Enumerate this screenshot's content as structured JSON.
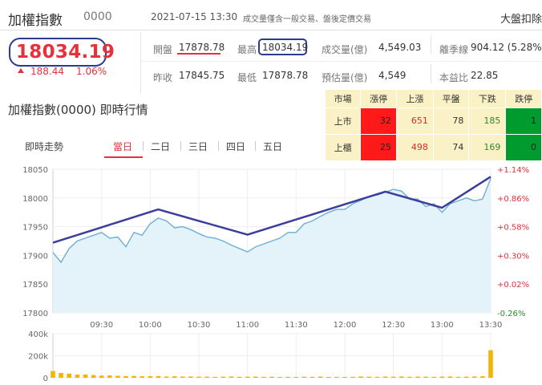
{
  "header": {
    "title": "加權指數",
    "code": "0000",
    "datetime": "2021-07-15 13:30",
    "note": "成交量僅含一般交易、盤後定價交易",
    "nav": "大盤扣除"
  },
  "quote": {
    "price": "18034.19",
    "change": "188.44",
    "change_pct": "1.06%",
    "open_label": "開盤",
    "open": "17878.78",
    "high_label": "最高",
    "high": "18034.19",
    "volume_label": "成交量(億)",
    "volume": "4,549.03",
    "season_label": "離季線",
    "season": "904.12 (5.28%)",
    "prev_label": "昨收",
    "prev": "17845.75",
    "low_label": "最低",
    "low": "17878.78",
    "est_label": "預估量(億)",
    "est": "4,549",
    "pe_label": "本益比",
    "pe": "22.85"
  },
  "section_title": "加權指數(0000) 即時行情",
  "tabs": {
    "label": "即時走勢",
    "items": [
      "當日",
      "二日",
      "三日",
      "四日",
      "五日"
    ],
    "active": 0
  },
  "market_table": {
    "headers": [
      "市場",
      "漲停",
      "上漲",
      "平盤",
      "下跌",
      "跌停"
    ],
    "rows": [
      {
        "market": "上市",
        "limit_up": "32",
        "up": "651",
        "flat": "78",
        "down": "185",
        "limit_down": "1"
      },
      {
        "market": "上櫃",
        "limit_up": "25",
        "up": "498",
        "flat": "74",
        "down": "169",
        "limit_down": "0"
      }
    ]
  },
  "colors": {
    "price_up": "#e8303a",
    "line": "#6ab0d6",
    "fill": "#e4f2fa",
    "annotation": "#3b3f9b",
    "volume_bar": "#f2b600",
    "limit_up_bg": "#ff1a1a",
    "limit_down_bg": "#009b2e",
    "table_bg": "#fbf1c7"
  },
  "chart_data": {
    "type": "area",
    "x_ticks": [
      "09:30",
      "10:00",
      "10:30",
      "11:00",
      "11:30",
      "12:00",
      "12:30",
      "13:00",
      "13:30"
    ],
    "y_ticks": [
      "17800",
      "17850",
      "17900",
      "17950",
      "18000",
      "18050"
    ],
    "y_right_ticks": [
      "-0.26%",
      "+0.02%",
      "+0.30%",
      "+0.58%",
      "+0.86%",
      "+1.14%"
    ],
    "ylim": [
      17800,
      18050
    ],
    "prev_close": 17845.75,
    "x": [
      "09:00",
      "09:05",
      "09:10",
      "09:15",
      "09:20",
      "09:25",
      "09:30",
      "09:35",
      "09:40",
      "09:45",
      "09:50",
      "09:55",
      "10:00",
      "10:05",
      "10:10",
      "10:15",
      "10:20",
      "10:25",
      "10:30",
      "10:35",
      "10:40",
      "10:45",
      "10:50",
      "10:55",
      "11:00",
      "11:05",
      "11:10",
      "11:15",
      "11:20",
      "11:25",
      "11:30",
      "11:35",
      "11:40",
      "11:45",
      "11:50",
      "11:55",
      "12:00",
      "12:05",
      "12:10",
      "12:15",
      "12:20",
      "12:25",
      "12:30",
      "12:35",
      "12:40",
      "12:45",
      "12:50",
      "12:55",
      "13:00",
      "13:05",
      "13:10",
      "13:15",
      "13:20",
      "13:25",
      "13:30"
    ],
    "series": [
      {
        "values": [
          17905,
          17888,
          17912,
          17925,
          17930,
          17935,
          17940,
          17930,
          17932,
          17915,
          17940,
          17935,
          17955,
          17965,
          17960,
          17948,
          17950,
          17945,
          17938,
          17932,
          17930,
          17925,
          17918,
          17912,
          17906,
          17915,
          17920,
          17925,
          17930,
          17940,
          17940,
          17955,
          17960,
          17968,
          17975,
          17980,
          17980,
          17990,
          17996,
          18003,
          18005,
          18010,
          18015,
          18012,
          17998,
          17998,
          17985,
          17990,
          17975,
          17990,
          17995,
          18000,
          17995,
          17998,
          18034
        ]
      }
    ],
    "volume": {
      "y_ticks": [
        "0",
        "200k",
        "400k"
      ],
      "ylim": [
        0,
        400000
      ],
      "values": [
        62000,
        44000,
        38000,
        28000,
        30000,
        25000,
        20000,
        22000,
        18000,
        16000,
        17000,
        14000,
        15000,
        16000,
        12000,
        14000,
        11000,
        12000,
        10000,
        11000,
        9000,
        10000,
        12000,
        9000,
        10000,
        11000,
        9000,
        10000,
        8000,
        9000,
        8000,
        10000,
        9000,
        11000,
        8000,
        9000,
        8000,
        9000,
        12000,
        10000,
        9000,
        11000,
        10000,
        12000,
        9000,
        11000,
        10000,
        9000,
        11000,
        12000,
        9000,
        10000,
        12000,
        14000,
        250000
      ]
    },
    "annotation_line": {
      "x": [
        "09:00",
        "10:05",
        "11:00",
        "12:25",
        "13:00",
        "13:30"
      ],
      "values": [
        17922,
        17980,
        17936,
        18011,
        17983,
        18037
      ]
    }
  }
}
